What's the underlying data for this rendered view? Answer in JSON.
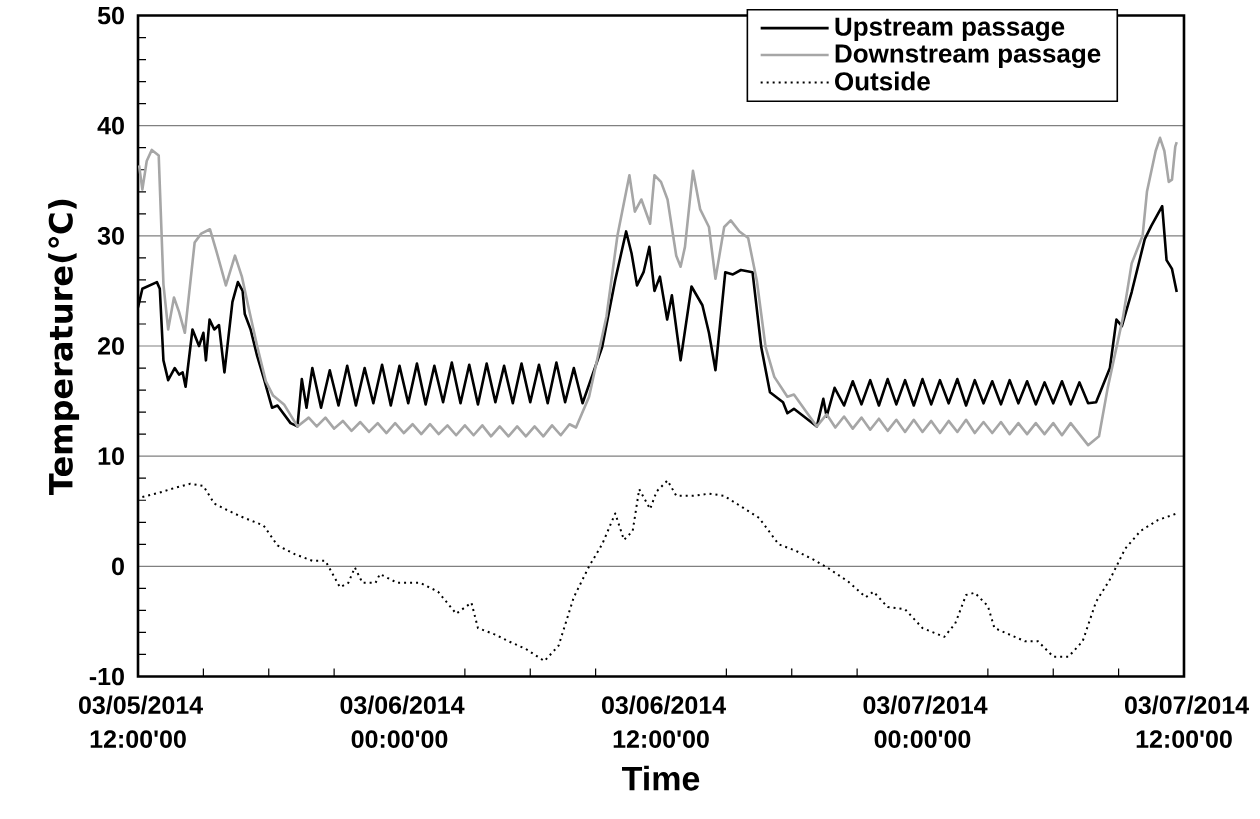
{
  "chart_data": {
    "type": "line",
    "xlabel": "Time",
    "ylabel": "Temperature(℃)",
    "xlim": [
      "2014-03-05T12:00",
      "2014-03-07T12:00"
    ],
    "xticks": [
      {
        "value": "2014-03-05T12:00",
        "label": "03/05/2014 12:00'00"
      },
      {
        "value": "2014-03-06T00:00",
        "label": "03/06/2014 00:00'00"
      },
      {
        "value": "2014-03-06T12:00",
        "label": "03/06/2014 12:00'00"
      },
      {
        "value": "2014-03-07T00:00",
        "label": "03/07/2014 00:00'00"
      },
      {
        "value": "2014-03-07T12:00",
        "label": "03/07/2014 12:00'00"
      }
    ],
    "ylim": [
      -10,
      50
    ],
    "yticks": [
      -10,
      0,
      10,
      20,
      30,
      40,
      50
    ],
    "grid": "y",
    "legend": "top right",
    "series": [
      {
        "name": "Upstream passage",
        "color": "#000000",
        "line_style": "solid",
        "x": [
          "2014-03-05T12:00",
          "2014-03-05T12:12",
          "2014-03-05T12:52",
          "2014-03-05T13:00",
          "2014-03-05T13:10",
          "2014-03-05T13:23",
          "2014-03-05T13:41",
          "2014-03-05T13:53",
          "2014-03-05T14:03",
          "2014-03-05T14:11",
          "2014-03-05T14:30",
          "2014-03-05T14:48",
          "2014-03-05T15:00",
          "2014-03-05T15:07",
          "2014-03-05T15:17",
          "2014-03-05T15:30",
          "2014-03-05T15:43",
          "2014-03-05T15:58",
          "2014-03-05T16:20",
          "2014-03-05T16:35",
          "2014-03-05T16:48",
          "2014-03-05T16:54",
          "2014-03-05T17:10",
          "2014-03-05T17:28",
          "2014-03-05T17:47",
          "2014-03-05T18:09",
          "2014-03-05T18:24",
          "2014-03-05T19:00",
          "2014-03-05T19:19",
          "2014-03-05T19:31",
          "2014-03-05T19:44",
          "2014-03-05T20:00",
          "2014-03-05T20:24",
          "2014-03-05T20:48",
          "2014-03-05T21:12",
          "2014-03-05T21:36",
          "2014-03-05T22:00",
          "2014-03-05T22:24",
          "2014-03-05T22:48",
          "2014-03-05T23:12",
          "2014-03-05T23:36",
          "2014-03-06T00:00",
          "2014-03-06T00:24",
          "2014-03-06T00:48",
          "2014-03-06T01:12",
          "2014-03-06T01:36",
          "2014-03-06T02:00",
          "2014-03-06T02:24",
          "2014-03-06T02:48",
          "2014-03-06T03:12",
          "2014-03-06T03:36",
          "2014-03-06T04:00",
          "2014-03-06T04:24",
          "2014-03-06T04:48",
          "2014-03-06T05:12",
          "2014-03-06T05:36",
          "2014-03-06T06:00",
          "2014-03-06T06:24",
          "2014-03-06T06:48",
          "2014-03-06T07:12",
          "2014-03-06T07:36",
          "2014-03-06T08:00",
          "2014-03-06T08:24",
          "2014-03-06T09:18",
          "2014-03-06T09:54",
          "2014-03-06T10:24",
          "2014-03-06T10:39",
          "2014-03-06T10:54",
          "2014-03-06T11:12",
          "2014-03-06T11:28",
          "2014-03-06T11:42",
          "2014-03-06T11:57",
          "2014-03-06T12:17",
          "2014-03-06T12:30",
          "2014-03-06T12:54",
          "2014-03-06T13:24",
          "2014-03-06T13:54",
          "2014-03-06T14:12",
          "2014-03-06T14:30",
          "2014-03-06T14:57",
          "2014-03-06T15:18",
          "2014-03-06T15:40",
          "2014-03-06T16:12",
          "2014-03-06T16:36",
          "2014-03-06T17:00",
          "2014-03-06T17:36",
          "2014-03-06T17:48",
          "2014-03-06T18:06",
          "2014-03-06T19:09",
          "2014-03-06T19:27",
          "2014-03-06T19:36",
          "2014-03-06T19:58",
          "2014-03-06T20:24",
          "2014-03-06T20:48",
          "2014-03-06T21:12",
          "2014-03-06T21:36",
          "2014-03-06T22:00",
          "2014-03-06T22:24",
          "2014-03-06T22:48",
          "2014-03-06T23:12",
          "2014-03-06T23:36",
          "2014-03-07T00:00",
          "2014-03-07T00:24",
          "2014-03-07T00:48",
          "2014-03-07T01:12",
          "2014-03-07T01:36",
          "2014-03-07T02:00",
          "2014-03-07T02:24",
          "2014-03-07T02:48",
          "2014-03-07T03:12",
          "2014-03-07T03:36",
          "2014-03-07T04:00",
          "2014-03-07T04:24",
          "2014-03-07T04:48",
          "2014-03-07T05:12",
          "2014-03-07T05:36",
          "2014-03-07T06:00",
          "2014-03-07T06:24",
          "2014-03-07T06:48",
          "2014-03-07T07:12",
          "2014-03-07T07:36",
          "2014-03-07T07:58",
          "2014-03-07T08:36",
          "2014-03-07T08:54",
          "2014-03-07T09:09",
          "2014-03-07T09:36",
          "2014-03-07T10:12",
          "2014-03-07T10:30",
          "2014-03-07T11:00",
          "2014-03-07T11:12",
          "2014-03-07T11:27",
          "2014-03-07T11:40"
        ],
        "values": [
          23.5,
          25.2,
          25.8,
          25.2,
          18.7,
          16.9,
          18.0,
          17.4,
          17.6,
          16.3,
          21.5,
          20.0,
          21.2,
          18.7,
          22.4,
          21.5,
          21.9,
          17.6,
          24.0,
          25.8,
          25.0,
          22.9,
          21.5,
          19.1,
          17.0,
          14.4,
          14.6,
          13.0,
          12.7,
          17.0,
          14.4,
          18.0,
          14.4,
          17.8,
          14.6,
          18.2,
          14.6,
          18.0,
          14.8,
          18.3,
          14.6,
          18.2,
          14.8,
          18.4,
          14.7,
          18.2,
          14.9,
          18.5,
          14.8,
          18.3,
          14.7,
          18.4,
          14.9,
          18.2,
          14.8,
          18.4,
          14.9,
          18.3,
          14.8,
          18.5,
          14.9,
          18.0,
          14.8,
          19.9,
          26.0,
          30.4,
          28.4,
          25.5,
          26.7,
          29.0,
          25.0,
          26.3,
          22.4,
          24.6,
          18.7,
          25.4,
          23.7,
          21.2,
          17.8,
          26.7,
          26.5,
          26.9,
          26.7,
          19.9,
          15.8,
          14.9,
          13.9,
          14.3,
          12.7,
          15.2,
          13.6,
          16.2,
          14.6,
          16.8,
          14.7,
          16.9,
          14.6,
          17.0,
          14.7,
          16.9,
          14.6,
          17.0,
          14.7,
          16.9,
          14.8,
          17.0,
          14.6,
          16.9,
          14.8,
          16.8,
          14.7,
          16.9,
          14.8,
          16.8,
          14.7,
          16.7,
          14.8,
          16.8,
          14.7,
          16.7,
          14.8,
          14.9,
          18.0,
          22.4,
          21.8,
          24.9,
          29.7,
          30.9,
          32.7,
          27.8,
          27.0,
          24.9
        ]
      },
      {
        "name": "Downstream passage",
        "color": "#a6a6a6",
        "line_style": "solid",
        "x": [
          "2014-03-05T12:03",
          "2014-03-05T12:12",
          "2014-03-05T12:24",
          "2014-03-05T12:38",
          "2014-03-05T12:57",
          "2014-03-05T13:10",
          "2014-03-05T13:23",
          "2014-03-05T13:39",
          "2014-03-05T13:53",
          "2014-03-05T14:09",
          "2014-03-05T14:36",
          "2014-03-05T14:54",
          "2014-03-05T15:18",
          "2014-03-05T15:36",
          "2014-03-05T16:02",
          "2014-03-05T16:27",
          "2014-03-05T16:46",
          "2014-03-05T17:03",
          "2014-03-05T17:28",
          "2014-03-05T17:52",
          "2014-03-05T18:12",
          "2014-03-05T18:42",
          "2014-03-05T19:19",
          "2014-03-05T19:50",
          "2014-03-05T20:12",
          "2014-03-05T20:36",
          "2014-03-05T21:00",
          "2014-03-05T21:24",
          "2014-03-05T21:48",
          "2014-03-05T22:12",
          "2014-03-05T22:36",
          "2014-03-05T23:00",
          "2014-03-05T23:24",
          "2014-03-05T23:48",
          "2014-03-06T00:12",
          "2014-03-06T00:36",
          "2014-03-06T01:00",
          "2014-03-06T01:24",
          "2014-03-06T01:48",
          "2014-03-06T02:12",
          "2014-03-06T02:36",
          "2014-03-06T03:00",
          "2014-03-06T03:24",
          "2014-03-06T03:48",
          "2014-03-06T04:12",
          "2014-03-06T04:36",
          "2014-03-06T05:00",
          "2014-03-06T05:24",
          "2014-03-06T05:48",
          "2014-03-06T06:12",
          "2014-03-06T06:36",
          "2014-03-06T07:00",
          "2014-03-06T07:24",
          "2014-03-06T07:48",
          "2014-03-06T08:06",
          "2014-03-06T08:42",
          "2014-03-06T09:30",
          "2014-03-06T10:00",
          "2014-03-06T10:33",
          "2014-03-06T10:48",
          "2014-03-06T11:06",
          "2014-03-06T11:30",
          "2014-03-06T11:42",
          "2014-03-06T12:00",
          "2014-03-06T12:18",
          "2014-03-06T12:42",
          "2014-03-06T12:54",
          "2014-03-06T13:06",
          "2014-03-06T13:28",
          "2014-03-06T13:48",
          "2014-03-06T14:12",
          "2014-03-06T14:30",
          "2014-03-06T14:54",
          "2014-03-06T15:12",
          "2014-03-06T15:36",
          "2014-03-06T16:00",
          "2014-03-06T16:24",
          "2014-03-06T16:48",
          "2014-03-06T17:12",
          "2014-03-06T17:48",
          "2014-03-06T18:06",
          "2014-03-06T19:09",
          "2014-03-06T19:36",
          "2014-03-06T20:00",
          "2014-03-06T20:24",
          "2014-03-06T20:48",
          "2014-03-06T21:12",
          "2014-03-06T21:36",
          "2014-03-06T22:00",
          "2014-03-06T22:24",
          "2014-03-06T22:48",
          "2014-03-06T23:12",
          "2014-03-06T23:36",
          "2014-03-07T00:00",
          "2014-03-07T00:24",
          "2014-03-07T00:48",
          "2014-03-07T01:12",
          "2014-03-07T01:36",
          "2014-03-07T02:00",
          "2014-03-07T02:24",
          "2014-03-07T02:48",
          "2014-03-07T03:12",
          "2014-03-07T03:36",
          "2014-03-07T04:00",
          "2014-03-07T04:24",
          "2014-03-07T04:48",
          "2014-03-07T05:12",
          "2014-03-07T05:36",
          "2014-03-07T06:00",
          "2014-03-07T06:24",
          "2014-03-07T06:48",
          "2014-03-07T07:12",
          "2014-03-07T07:36",
          "2014-03-07T08:06",
          "2014-03-07T08:30",
          "2014-03-07T09:12",
          "2014-03-07T09:36",
          "2014-03-07T10:06",
          "2014-03-07T10:18",
          "2014-03-07T10:42",
          "2014-03-07T10:54",
          "2014-03-07T11:06",
          "2014-03-07T11:18",
          "2014-03-07T11:27",
          "2014-03-07T11:36",
          "2014-03-07T11:40"
        ],
        "values": [
          36.4,
          34.2,
          36.8,
          37.8,
          37.3,
          25.6,
          21.5,
          24.4,
          23.1,
          21.2,
          29.4,
          30.2,
          30.6,
          28.6,
          25.5,
          28.2,
          26.3,
          23.7,
          20.0,
          16.8,
          15.5,
          14.7,
          12.7,
          13.5,
          12.7,
          13.5,
          12.5,
          13.2,
          12.3,
          13.1,
          12.2,
          13.0,
          12.1,
          13.0,
          12.1,
          12.9,
          12.0,
          12.9,
          12.0,
          12.8,
          11.9,
          12.8,
          11.9,
          12.8,
          11.8,
          12.7,
          11.8,
          12.7,
          11.8,
          12.7,
          11.8,
          12.8,
          11.9,
          12.9,
          12.6,
          15.4,
          22.7,
          30.0,
          35.5,
          32.2,
          33.3,
          31.1,
          35.5,
          34.9,
          33.3,
          28.2,
          27.2,
          29.0,
          35.9,
          32.4,
          30.8,
          26.1,
          30.8,
          31.4,
          30.4,
          29.8,
          25.9,
          19.9,
          17.2,
          15.4,
          15.6,
          12.7,
          13.8,
          12.6,
          13.6,
          12.5,
          13.5,
          12.4,
          13.4,
          12.3,
          13.3,
          12.2,
          13.3,
          12.2,
          13.2,
          12.1,
          13.2,
          12.2,
          13.3,
          12.1,
          13.1,
          12.1,
          13.1,
          12.0,
          13.0,
          12.0,
          13.0,
          12.0,
          13.0,
          11.9,
          13.0,
          12.0,
          11.0,
          11.8,
          16.2,
          22.6,
          27.5,
          30.0,
          34.0,
          37.7,
          38.9,
          37.7,
          34.9,
          35.1,
          38.1,
          38.5
        ]
      },
      {
        "name": "Outside",
        "color": "#000000",
        "line_style": "dotted",
        "x": [
          "2014-03-05T12:12",
          "2014-03-05T13:00",
          "2014-03-05T13:39",
          "2014-03-05T14:24",
          "2014-03-05T15:00",
          "2014-03-05T15:30",
          "2014-03-05T16:06",
          "2014-03-05T16:45",
          "2014-03-05T17:46",
          "2014-03-05T18:24",
          "2014-03-05T19:12",
          "2014-03-05T20:00",
          "2014-03-05T20:36",
          "2014-03-05T21:16",
          "2014-03-05T21:39",
          "2014-03-05T21:57",
          "2014-03-05T22:18",
          "2014-03-05T22:54",
          "2014-03-05T23:06",
          "2014-03-05T23:54",
          "2014-03-06T00:57",
          "2014-03-06T01:46",
          "2014-03-06T02:36",
          "2014-03-06T03:18",
          "2014-03-06T03:36",
          "2014-03-06T04:24",
          "2014-03-06T05:00",
          "2014-03-06T05:48",
          "2014-03-06T06:39",
          "2014-03-06T07:18",
          "2014-03-06T08:00",
          "2014-03-06T08:42",
          "2014-03-06T09:18",
          "2014-03-06T09:54",
          "2014-03-06T10:18",
          "2014-03-06T10:42",
          "2014-03-06T11:00",
          "2014-03-06T11:30",
          "2014-03-06T11:48",
          "2014-03-06T12:18",
          "2014-03-06T12:42",
          "2014-03-06T13:30",
          "2014-03-06T14:12",
          "2014-03-06T14:54",
          "2014-03-06T15:42",
          "2014-03-06T16:30",
          "2014-03-06T17:24",
          "2014-03-06T18:12",
          "2014-03-06T19:00",
          "2014-03-06T19:42",
          "2014-03-06T20:36",
          "2014-03-06T21:24",
          "2014-03-06T21:45",
          "2014-03-06T22:24",
          "2014-03-06T23:12",
          "2014-03-07T00:00",
          "2014-03-07T01:00",
          "2014-03-07T01:30",
          "2014-03-07T02:00",
          "2014-03-07T02:24",
          "2014-03-07T03:00",
          "2014-03-07T03:18",
          "2014-03-07T04:00",
          "2014-03-07T04:42",
          "2014-03-07T05:18",
          "2014-03-07T06:00",
          "2014-03-07T06:42",
          "2014-03-07T07:21",
          "2014-03-07T07:58",
          "2014-03-07T08:36",
          "2014-03-07T09:18",
          "2014-03-07T10:00",
          "2014-03-07T10:48",
          "2014-03-07T11:40"
        ],
        "values": [
          6.3,
          6.7,
          7.1,
          7.5,
          7.3,
          5.7,
          5.1,
          4.5,
          3.7,
          1.9,
          1.1,
          0.5,
          0.5,
          -1.9,
          -1.5,
          -0.1,
          -1.5,
          -1.5,
          -0.7,
          -1.5,
          -1.5,
          -2.3,
          -4.3,
          -3.3,
          -5.6,
          -6.2,
          -6.8,
          -7.5,
          -8.6,
          -7.2,
          -2.8,
          0.0,
          2.0,
          4.8,
          2.4,
          3.2,
          7.0,
          5.2,
          6.8,
          7.8,
          6.4,
          6.4,
          6.6,
          6.4,
          5.4,
          4.4,
          2.0,
          1.4,
          0.6,
          -0.2,
          -1.4,
          -2.8,
          -2.3,
          -3.7,
          -3.9,
          -5.6,
          -6.4,
          -5.2,
          -2.6,
          -2.4,
          -3.6,
          -5.6,
          -6.2,
          -6.8,
          -6.8,
          -8.2,
          -8.2,
          -6.8,
          -3.2,
          -1.2,
          1.6,
          3.2,
          4.2,
          4.8
        ]
      }
    ]
  }
}
